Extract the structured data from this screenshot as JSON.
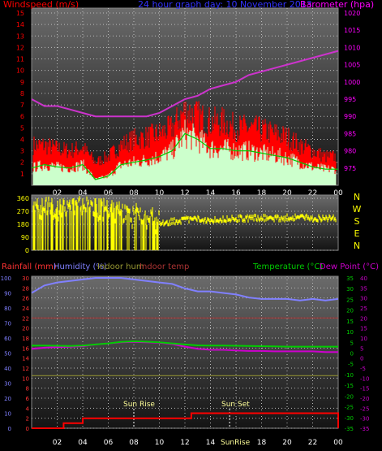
{
  "chart_data": [
    {
      "type": "line",
      "title": "24 hour graph day:  10 November 2013",
      "y_left_label": "Windspeed (m/s)",
      "y_right_label": "Barometer (hpa)",
      "x_ticks": [
        "02",
        "04",
        "06",
        "08",
        "10",
        "12",
        "14",
        "16",
        "18",
        "20",
        "22",
        "00"
      ],
      "y_left_ticks": [
        "1",
        "2",
        "3",
        "4",
        "5",
        "6",
        "7",
        "8",
        "9",
        "10",
        "11",
        "12",
        "13",
        "14",
        "15"
      ],
      "y_left_range": [
        0,
        15
      ],
      "y_right_ticks": [
        "975",
        "980",
        "985",
        "990",
        "995",
        "1000",
        "1005",
        "1010",
        "1015",
        "1020"
      ],
      "y_right_range": [
        970,
        1020
      ],
      "grid": true,
      "colors": {
        "wind_gust": "#ff0000",
        "wind_avg": "#00cc00",
        "wind_base": "#ccffcc",
        "barometer": "#cc33cc",
        "title": "#3333ff",
        "left_axis": "#ff0000",
        "right_axis": "#ff00ff"
      },
      "series": [
        {
          "name": "Barometer (hpa)",
          "x": [
            0,
            1,
            2,
            3,
            4,
            5,
            6,
            7,
            8,
            9,
            10,
            11,
            12,
            13,
            14,
            15,
            16,
            17,
            18,
            19,
            20,
            21,
            22,
            23,
            24
          ],
          "values": [
            995,
            993,
            993,
            992,
            991,
            990,
            990,
            990,
            990,
            990,
            991,
            993,
            995,
            996,
            998,
            999,
            1000,
            1002,
            1003,
            1004,
            1005,
            1006,
            1007,
            1008,
            1009
          ]
        },
        {
          "name": "Wind gust",
          "x": [
            0,
            1,
            2,
            3,
            4,
            5,
            6,
            7,
            8,
            9,
            10,
            11,
            12,
            13,
            14,
            15,
            16,
            17,
            18,
            19,
            20,
            21,
            22,
            23,
            24
          ],
          "values": [
            3.5,
            3.5,
            3.2,
            3.0,
            3.3,
            2.0,
            2.5,
            3.5,
            4.0,
            4.2,
            4.5,
            5.0,
            6.5,
            6.0,
            5.5,
            5.5,
            5.0,
            5.0,
            4.8,
            4.5,
            4.2,
            3.5,
            3.0,
            2.5,
            2.5
          ]
        },
        {
          "name": "Wind average",
          "x": [
            0,
            1,
            2,
            3,
            4,
            5,
            6,
            7,
            8,
            9,
            10,
            11,
            12,
            13,
            14,
            15,
            16,
            17,
            18,
            19,
            20,
            21,
            22,
            23,
            24
          ],
          "values": [
            1.5,
            1.8,
            1.6,
            1.5,
            1.8,
            0.5,
            0.8,
            1.8,
            2.0,
            2.2,
            2.5,
            3.0,
            4.5,
            4.0,
            3.2,
            3.2,
            3.0,
            3.0,
            2.8,
            2.6,
            2.4,
            2.0,
            1.6,
            1.4,
            1.4
          ]
        }
      ]
    },
    {
      "type": "bar",
      "title": "Wind direction",
      "y_ticks": [
        "0",
        "90",
        "180",
        "270",
        "360"
      ],
      "y_range": [
        0,
        360
      ],
      "compass": [
        "N",
        "W",
        "S",
        "E",
        "N"
      ],
      "grid": true,
      "colors": {
        "direction": "#ffff00"
      },
      "series": [
        {
          "name": "Wind direction",
          "x": [
            0,
            1,
            2,
            3,
            4,
            5,
            6,
            7,
            8,
            9,
            10,
            11,
            12,
            13,
            14,
            15,
            16,
            17,
            18,
            19,
            20,
            21,
            22,
            23,
            24
          ],
          "values": [
            250,
            300,
            280,
            260,
            300,
            280,
            270,
            240,
            230,
            200,
            190,
            200,
            210,
            215,
            210,
            215,
            220,
            220,
            225,
            220,
            225,
            230,
            220,
            225,
            220
          ]
        }
      ]
    },
    {
      "type": "line",
      "legend": [
        "Rainfall (mm)",
        "Humidity (%)",
        "Indoor hum",
        "Indoor temp",
        "Temperature (°C)",
        "Dew Point (°C)"
      ],
      "y_far_left_ticks": [
        "0",
        "2",
        "4",
        "6",
        "8",
        "10",
        "12",
        "14",
        "16",
        "18",
        "20",
        "22",
        "24",
        "26",
        "28",
        "30"
      ],
      "y_far_left_range": [
        0,
        30
      ],
      "y_left_ticks": [
        "0",
        "10",
        "20",
        "30",
        "40",
        "50",
        "60",
        "70",
        "80",
        "90",
        "100"
      ],
      "y_left_range": [
        0,
        100
      ],
      "y_right_ticks": [
        "-35",
        "-30",
        "-25",
        "-20",
        "-15",
        "-10",
        "-5",
        "0",
        "5",
        "10",
        "15",
        "20",
        "25",
        "30",
        "35"
      ],
      "y_right_range": [
        -35,
        35
      ],
      "y_far_right_ticks": [
        "-35",
        "-30",
        "-25",
        "-20",
        "-15",
        "-10",
        "-5",
        "0",
        "5",
        "10",
        "15",
        "20",
        "25",
        "30",
        "35",
        "40"
      ],
      "y_far_right_range": [
        -35,
        40
      ],
      "annotations": [
        "Sun Rise",
        "Sun Set",
        "SunRise"
      ],
      "grid": true,
      "colors": {
        "rain": "#ff0000",
        "humidity": "#8080ff",
        "indoor_hum": "#999933",
        "indoor_temp": "#aa3333",
        "temperature": "#00cc00",
        "dewpoint": "#cc00cc"
      },
      "series": [
        {
          "name": "Humidity (%)",
          "x": [
            0,
            1,
            2,
            3,
            4,
            5,
            6,
            7,
            8,
            9,
            10,
            11,
            12,
            13,
            14,
            15,
            16,
            17,
            18,
            19,
            20,
            21,
            22,
            23,
            24
          ],
          "values": [
            90,
            95,
            97,
            98,
            99,
            100,
            100,
            100,
            99,
            98,
            97,
            96,
            93,
            91,
            91,
            90,
            89,
            87,
            86,
            86,
            86,
            85,
            86,
            85,
            86
          ]
        },
        {
          "name": "Temperature (°C)",
          "x": [
            0,
            1,
            2,
            3,
            4,
            5,
            6,
            7,
            8,
            9,
            10,
            11,
            12,
            13,
            14,
            15,
            16,
            17,
            18,
            19,
            20,
            21,
            22,
            23,
            24
          ],
          "values": [
            3.5,
            3.5,
            3.4,
            3.3,
            3.5,
            4.0,
            4.5,
            5.2,
            5.5,
            5.3,
            5.0,
            4.5,
            4.0,
            3.6,
            3.5,
            3.5,
            3.4,
            3.3,
            3.2,
            3.1,
            3.0,
            3.0,
            3.0,
            3.0,
            3.0
          ]
        },
        {
          "name": "Dew Point (°C)",
          "x": [
            0,
            1,
            2,
            3,
            4,
            5,
            6,
            7,
            8,
            9,
            10,
            11,
            12,
            13,
            14,
            15,
            16,
            17,
            18,
            19,
            20,
            21,
            22,
            23,
            24
          ],
          "values": [
            2.0,
            2.5,
            2.8,
            3.0,
            3.2,
            4.0,
            4.5,
            5.0,
            5.2,
            5.0,
            4.8,
            4.2,
            3.0,
            2.0,
            1.5,
            1.5,
            1.2,
            1.0,
            1.0,
            0.8,
            0.8,
            0.8,
            0.8,
            0.5,
            0.5
          ]
        },
        {
          "name": "Indoor temp",
          "x": [
            0,
            24
          ],
          "values": [
            20,
            20
          ]
        },
        {
          "name": "Indoor hum",
          "x": [
            0,
            24
          ],
          "values": [
            35,
            35
          ]
        },
        {
          "name": "Rainfall (mm)",
          "x": [
            0,
            1.5,
            2.5,
            4,
            6,
            8,
            10,
            12,
            12.5,
            14,
            16,
            18,
            20,
            22,
            23.9,
            24
          ],
          "values": [
            0,
            0,
            1,
            2,
            2,
            2,
            2,
            2,
            3,
            3,
            3,
            3,
            3,
            3,
            3,
            0
          ]
        }
      ]
    }
  ]
}
